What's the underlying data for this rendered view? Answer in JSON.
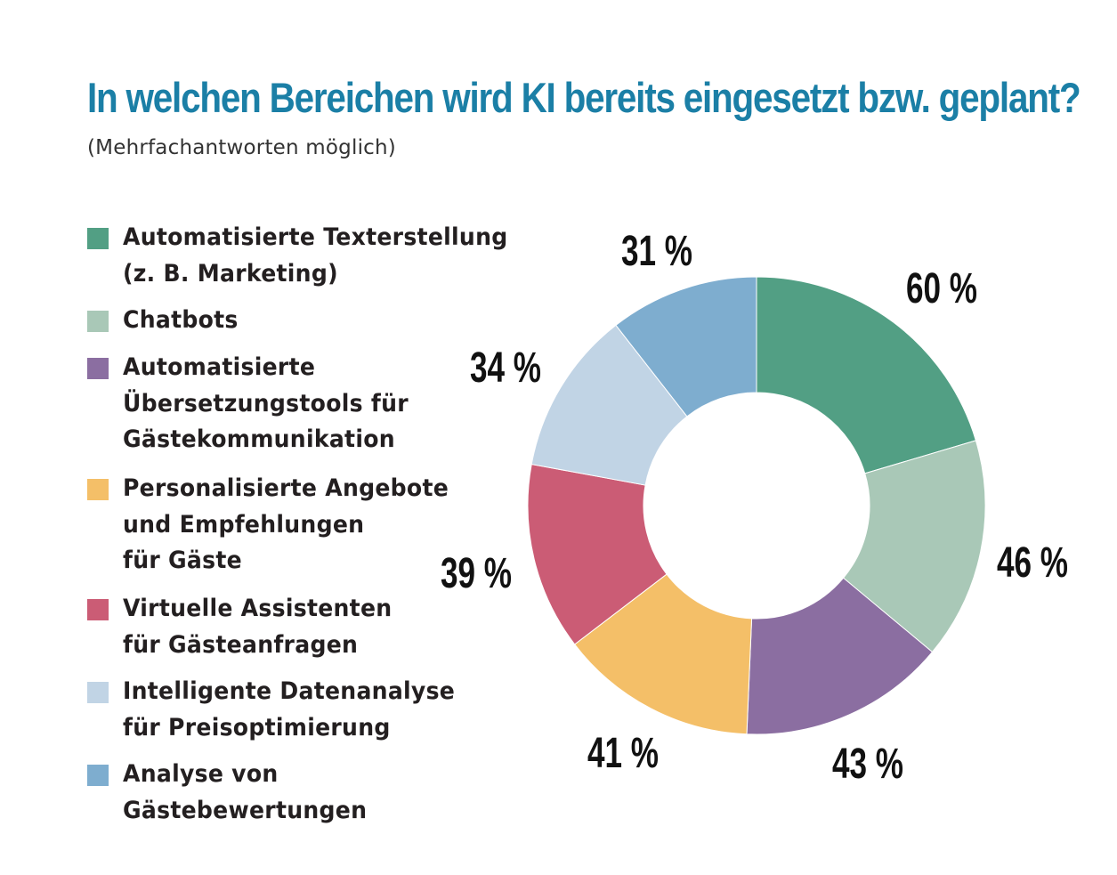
{
  "title": "In welchen Bereichen wird KI bereits eingesetzt bzw. geplant?",
  "subtitle": "(Mehrfachantworten möglich)",
  "chart_data": {
    "type": "pie",
    "title": "In welchen Bereichen wird KI bereits eingesetzt bzw. geplant?",
    "subtitle": "(Mehrfachantworten möglich)",
    "donut": true,
    "legend_position": "left",
    "unit": "%",
    "slices": [
      {
        "label": "Automatisierte Texterstellung\n(z. B. Marketing)",
        "value": 60,
        "value_label": "60 %",
        "color": "#529f84"
      },
      {
        "label": "Chatbots",
        "value": 46,
        "value_label": "46 %",
        "color": "#a9c8b7"
      },
      {
        "label": "Automatisierte\nÜbersetzungstools für\nGästekommunikation",
        "value": 43,
        "value_label": "43 %",
        "color": "#8b6ea1"
      },
      {
        "label": "Personalisierte Angebote\nund Empfehlungen\nfür Gäste",
        "value": 41,
        "value_label": "41 %",
        "color": "#f4bf68"
      },
      {
        "label": "Virtuelle Assistenten\nfür Gästeanfragen",
        "value": 39,
        "value_label": "39 %",
        "color": "#cb5c75"
      },
      {
        "label": "Intelligente Datenanalyse\nfür Preisoptimierung",
        "value": 34,
        "value_label": "34 %",
        "color": "#c1d4e5"
      },
      {
        "label": "Analyse von Gästebewertungen",
        "value": 31,
        "value_label": "31 %",
        "color": "#7eadcf"
      }
    ]
  }
}
